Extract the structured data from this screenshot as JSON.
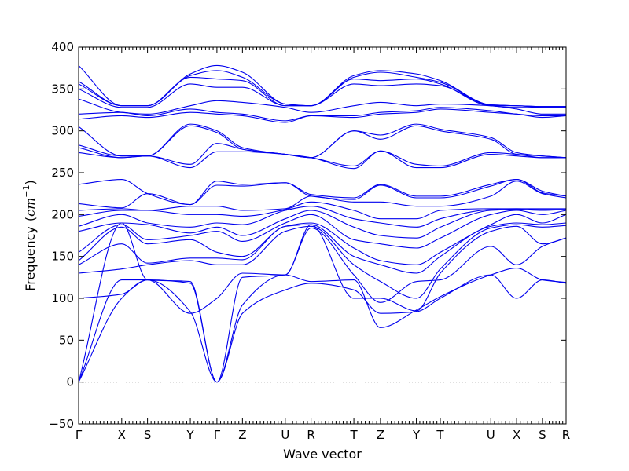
{
  "chart_data": {
    "type": "line",
    "title": "",
    "xlabel": "Wave vector",
    "ylabel": "Frequency",
    "ylabel_unit": "cm",
    "ylabel_unit_exp": "−1",
    "ylim": [
      -50,
      400
    ],
    "yticks": [
      -50,
      0,
      50,
      100,
      150,
      200,
      250,
      300,
      350,
      400
    ],
    "xlim": [
      0,
      18.33
    ],
    "high_symmetry_points": [
      {
        "label": "Γ",
        "x": 0
      },
      {
        "label": "X",
        "x": 1.62
      },
      {
        "label": "S",
        "x": 2.59
      },
      {
        "label": "Y",
        "x": 4.2
      },
      {
        "label": "Γ",
        "x": 5.2
      },
      {
        "label": "Z",
        "x": 6.16
      },
      {
        "label": "U",
        "x": 7.77
      },
      {
        "label": "R",
        "x": 8.74
      },
      {
        "label": "T",
        "x": 10.35
      },
      {
        "label": "Z",
        "x": 11.35
      },
      {
        "label": "Y",
        "x": 12.7
      },
      {
        "label": "T",
        "x": 13.6
      },
      {
        "label": "U",
        "x": 15.5
      },
      {
        "label": "X",
        "x": 16.47
      },
      {
        "label": "S",
        "x": 17.44
      },
      {
        "label": "R",
        "x": 18.33
      }
    ],
    "zero_line": true,
    "series": [
      {
        "x": [
          0,
          1.62,
          2.59,
          4.2,
          5.2,
          6.16,
          7.77,
          8.74,
          10.35,
          11.35,
          12.7,
          13.6,
          15.5,
          16.47,
          17.44,
          18.33
        ],
        "y": [
          0,
          100,
          122,
          84,
          0,
          82,
          110,
          118,
          110,
          82,
          84,
          100,
          128,
          100,
          122,
          118
        ]
      },
      {
        "x": [
          0,
          1.62,
          2.59,
          4.2,
          5.2,
          6.16,
          7.77,
          8.74,
          10.35,
          11.35,
          12.7,
          13.6,
          15.5,
          16.47,
          17.44,
          18.33
        ],
        "y": [
          0,
          122,
          122,
          118,
          0,
          92,
          128,
          120,
          122,
          65,
          86,
          102,
          128,
          136,
          122,
          119
        ]
      },
      {
        "x": [
          0,
          1.62,
          2.59,
          4.2,
          5.2,
          6.16,
          7.77,
          8.74,
          10.35,
          11.35,
          12.7,
          13.6,
          15.5,
          16.47,
          17.44,
          18.33
        ],
        "y": [
          0,
          190,
          122,
          120,
          0,
          125,
          128,
          184,
          128,
          95,
          120,
          122,
          162,
          140,
          162,
          172
        ]
      },
      {
        "x": [
          0,
          1.62,
          2.59,
          4.2,
          5.2,
          6.16,
          7.77,
          8.74,
          10.35,
          11.35,
          12.7,
          13.6,
          15.5,
          16.47,
          17.44,
          18.33
        ],
        "y": [
          100,
          105,
          122,
          82,
          100,
          130,
          128,
          188,
          100,
          100,
          85,
          130,
          180,
          186,
          165,
          172
        ]
      },
      {
        "x": [
          0,
          1.62,
          2.59,
          4.2,
          5.2,
          6.16,
          7.77,
          8.74,
          10.35,
          11.35,
          12.7,
          13.6,
          15.5,
          16.47,
          17.44,
          18.33
        ],
        "y": [
          130,
          135,
          140,
          145,
          140,
          140,
          180,
          186,
          140,
          120,
          100,
          135,
          184,
          188,
          185,
          187
        ]
      },
      {
        "x": [
          0,
          1.62,
          2.59,
          4.2,
          5.2,
          6.16,
          7.77,
          8.74,
          10.35,
          11.35,
          12.7,
          13.6,
          15.5,
          16.47,
          17.44,
          18.33
        ],
        "y": [
          140,
          165,
          142,
          148,
          148,
          146,
          186,
          188,
          150,
          140,
          130,
          150,
          186,
          190,
          188,
          190
        ]
      },
      {
        "x": [
          0,
          1.62,
          2.59,
          4.2,
          5.2,
          6.16,
          7.77,
          8.74,
          10.35,
          11.35,
          12.7,
          13.6,
          15.5,
          16.47,
          17.44,
          18.33
        ],
        "y": [
          145,
          185,
          165,
          170,
          155,
          150,
          186,
          190,
          160,
          145,
          140,
          155,
          188,
          200,
          190,
          200
        ]
      },
      {
        "x": [
          0,
          1.62,
          2.59,
          4.2,
          5.2,
          6.16,
          7.77,
          8.74,
          10.35,
          11.35,
          12.7,
          13.6,
          15.5,
          16.47,
          17.44,
          18.33
        ],
        "y": [
          155,
          188,
          170,
          175,
          180,
          168,
          190,
          200,
          170,
          165,
          160,
          172,
          200,
          205,
          200,
          205
        ]
      },
      {
        "x": [
          0,
          1.62,
          2.59,
          4.2,
          5.2,
          6.16,
          7.77,
          8.74,
          10.35,
          11.35,
          12.7,
          13.6,
          15.5,
          16.47,
          17.44,
          18.33
        ],
        "y": [
          180,
          190,
          188,
          178,
          185,
          175,
          195,
          205,
          185,
          175,
          172,
          185,
          205,
          206,
          205,
          206
        ]
      },
      {
        "x": [
          0,
          1.62,
          2.59,
          4.2,
          5.2,
          6.16,
          7.77,
          8.74,
          10.35,
          11.35,
          12.7,
          13.6,
          15.5,
          16.47,
          17.44,
          18.33
        ],
        "y": [
          186,
          200,
          190,
          185,
          190,
          188,
          205,
          210,
          195,
          190,
          185,
          195,
          206,
          207,
          206,
          206
        ]
      },
      {
        "x": [
          0,
          1.62,
          2.59,
          4.2,
          5.2,
          6.16,
          7.77,
          8.74,
          10.35,
          11.35,
          12.7,
          13.6,
          15.5,
          16.47,
          17.44,
          18.33
        ],
        "y": [
          198,
          205,
          205,
          200,
          200,
          198,
          206,
          215,
          205,
          195,
          195,
          205,
          207,
          207,
          207,
          207
        ]
      },
      {
        "x": [
          0,
          1.62,
          2.59,
          4.2,
          5.2,
          6.16,
          7.77,
          8.74,
          10.35,
          11.35,
          12.7,
          13.6,
          15.5,
          16.47,
          17.44,
          18.33
        ],
        "y": [
          205,
          207,
          205,
          210,
          210,
          205,
          207,
          222,
          215,
          215,
          210,
          210,
          222,
          240,
          225,
          220
        ]
      },
      {
        "x": [
          0,
          1.62,
          2.59,
          4.2,
          5.2,
          6.16,
          7.77,
          8.74,
          10.35,
          11.35,
          12.7,
          13.6,
          15.5,
          16.47,
          17.44,
          18.33
        ],
        "y": [
          213,
          208,
          225,
          212,
          235,
          234,
          238,
          222,
          218,
          235,
          220,
          220,
          234,
          242,
          226,
          222
        ]
      },
      {
        "x": [
          0,
          1.62,
          2.59,
          4.2,
          5.2,
          6.16,
          7.77,
          8.74,
          10.35,
          11.35,
          12.7,
          13.6,
          15.5,
          16.47,
          17.44,
          18.33
        ],
        "y": [
          236,
          242,
          225,
          212,
          240,
          236,
          238,
          224,
          220,
          236,
          222,
          222,
          236,
          242,
          228,
          222
        ]
      },
      {
        "x": [
          0,
          1.62,
          2.59,
          4.2,
          5.2,
          6.16,
          7.77,
          8.74,
          10.35,
          11.35,
          12.7,
          13.6,
          15.5,
          16.47,
          17.44,
          18.33
        ],
        "y": [
          274,
          268,
          270,
          256,
          275,
          275,
          272,
          268,
          255,
          276,
          256,
          256,
          272,
          270,
          268,
          268
        ]
      },
      {
        "x": [
          0,
          1.62,
          2.59,
          4.2,
          5.2,
          6.16,
          7.77,
          8.74,
          10.35,
          11.35,
          12.7,
          13.6,
          15.5,
          16.47,
          17.44,
          18.33
        ],
        "y": [
          280,
          268,
          270,
          260,
          285,
          278,
          272,
          268,
          258,
          276,
          260,
          258,
          274,
          272,
          268,
          268
        ]
      },
      {
        "x": [
          0,
          1.62,
          2.59,
          4.2,
          5.2,
          6.16,
          7.77,
          8.74,
          10.35,
          11.35,
          12.7,
          13.6,
          15.5,
          16.47,
          17.44,
          18.33
        ],
        "y": [
          283,
          270,
          270,
          306,
          298,
          278,
          272,
          268,
          300,
          290,
          306,
          300,
          290,
          272,
          270,
          268
        ]
      },
      {
        "x": [
          0,
          1.62,
          2.59,
          4.2,
          5.2,
          6.16,
          7.77,
          8.74,
          10.35,
          11.35,
          12.7,
          13.6,
          15.5,
          16.47,
          17.44,
          18.33
        ],
        "y": [
          305,
          270,
          270,
          308,
          300,
          280,
          272,
          268,
          300,
          295,
          308,
          302,
          292,
          274,
          270,
          268
        ]
      },
      {
        "x": [
          0,
          1.62,
          2.59,
          4.2,
          5.2,
          6.16,
          7.77,
          8.74,
          10.35,
          11.35,
          12.7,
          13.6,
          15.5,
          16.47,
          17.44,
          18.33
        ],
        "y": [
          314,
          318,
          316,
          322,
          320,
          318,
          310,
          318,
          316,
          320,
          322,
          326,
          322,
          320,
          316,
          318
        ]
      },
      {
        "x": [
          0,
          1.62,
          2.59,
          4.2,
          5.2,
          6.16,
          7.77,
          8.74,
          10.35,
          11.35,
          12.7,
          13.6,
          15.5,
          16.47,
          17.44,
          18.33
        ],
        "y": [
          320,
          322,
          318,
          326,
          322,
          320,
          312,
          318,
          318,
          322,
          324,
          328,
          324,
          320,
          318,
          318
        ]
      },
      {
        "x": [
          0,
          1.62,
          2.59,
          4.2,
          5.2,
          6.16,
          7.77,
          8.74,
          10.35,
          11.35,
          12.7,
          13.6,
          15.5,
          16.47,
          17.44,
          18.33
        ],
        "y": [
          338,
          322,
          320,
          330,
          336,
          334,
          328,
          322,
          330,
          334,
          330,
          332,
          330,
          326,
          320,
          320
        ]
      },
      {
        "x": [
          0,
          1.62,
          2.59,
          4.2,
          5.2,
          6.16,
          7.77,
          8.74,
          10.35,
          11.35,
          12.7,
          13.6,
          15.5,
          16.47,
          17.44,
          18.33
        ],
        "y": [
          350,
          328,
          328,
          356,
          352,
          352,
          330,
          330,
          356,
          354,
          356,
          354,
          330,
          328,
          328,
          328
        ]
      },
      {
        "x": [
          0,
          1.62,
          2.59,
          4.2,
          5.2,
          6.16,
          7.77,
          8.74,
          10.35,
          11.35,
          12.7,
          13.6,
          15.5,
          16.47,
          17.44,
          18.33
        ],
        "y": [
          356,
          330,
          330,
          364,
          362,
          360,
          330,
          330,
          362,
          360,
          362,
          356,
          330,
          330,
          328,
          328
        ]
      },
      {
        "x": [
          0,
          1.62,
          2.59,
          4.2,
          5.2,
          6.16,
          7.77,
          8.74,
          10.35,
          11.35,
          12.7,
          13.6,
          15.5,
          16.47,
          17.44,
          18.33
        ],
        "y": [
          359,
          330,
          330,
          366,
          372,
          364,
          332,
          330,
          364,
          370,
          364,
          358,
          331,
          330,
          329,
          329
        ]
      },
      {
        "x": [
          0,
          1.62,
          2.59,
          4.2,
          5.2,
          6.16,
          7.77,
          8.74,
          10.35,
          11.35,
          12.7,
          13.6,
          15.5,
          16.47,
          17.44,
          18.33
        ],
        "y": [
          378,
          330,
          330,
          368,
          378,
          370,
          332,
          330,
          366,
          372,
          368,
          360,
          331,
          330,
          329,
          329
        ]
      }
    ]
  }
}
